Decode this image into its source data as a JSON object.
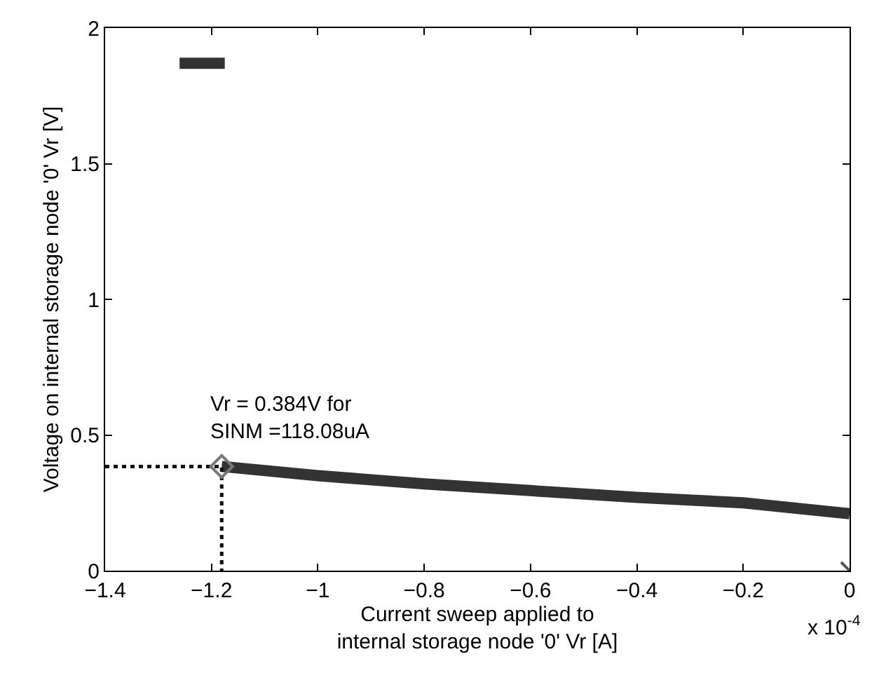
{
  "chart_data": {
    "type": "line",
    "xlabel": "Current sweep applied to\ninternal storage node '0' Vr [A]",
    "ylabel": "Voltage on internal storage node '0' Vr [V]",
    "xlim": [
      -1.4,
      0
    ],
    "xticks": [
      -1.4,
      -1.2,
      -1,
      -0.8,
      -0.6,
      -0.4,
      -0.2,
      0
    ],
    "ylim": [
      0,
      2
    ],
    "yticks": [
      0,
      0.5,
      1,
      1.5,
      2
    ],
    "series": [
      {
        "color": "#333333",
        "marker": "none",
        "line_style": "solid",
        "x": [
          -1.1808,
          -1,
          -0.8,
          -0.6,
          -0.4,
          -0.2,
          0
        ],
        "values": [
          0.384,
          0.35,
          0.32,
          0.295,
          0.27,
          0.25,
          0.21
        ]
      },
      {
        "color": "#333333",
        "marker": "none",
        "line_style": "solid",
        "x": [
          -1.26,
          -1.175
        ],
        "values": [
          1.87,
          1.87
        ]
      },
      {
        "type": "line",
        "color": "#111111",
        "marker": "none",
        "line_style": "dotted",
        "x": [
          -1.4,
          -1.1808,
          -1.1808
        ],
        "values": [
          0.384,
          0.384,
          0
        ]
      },
      {
        "type": "scatter",
        "color": "#777777",
        "marker": "diamond",
        "x": [
          -1.1808
        ],
        "values": [
          0.384
        ]
      },
      {
        "type": "scatter",
        "color": "#555555",
        "marker": "cross",
        "x": [
          0
        ],
        "values": [
          0
        ]
      }
    ],
    "annotations": [
      {
        "text": "Vr = 0.384V for\nSINM =118.08uA",
        "x": -1.1808,
        "y": 0.384
      },
      "x 10$^{-4}$"
    ]
  }
}
